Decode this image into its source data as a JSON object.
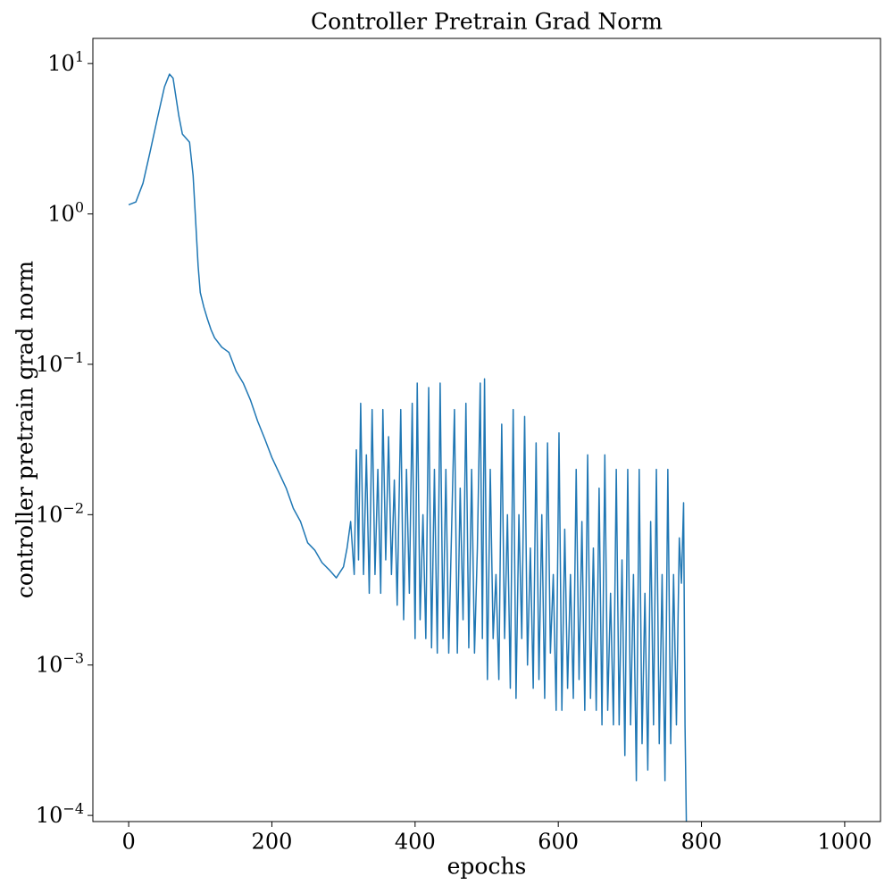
{
  "chart_data": {
    "type": "line",
    "title": "Controller Pretrain Grad Norm",
    "x_label": "epochs",
    "y_label": "controller pretrain grad norm",
    "color": "#1f77b4",
    "log_y": true,
    "grid": false,
    "xlim": [
      -50,
      1050
    ],
    "ylim": [
      9.1e-05,
      14.7
    ],
    "xticks": [
      0,
      200,
      400,
      600,
      800,
      1000
    ],
    "yticks": [
      {
        "value": 0.0001,
        "label": "10^−4"
      },
      {
        "value": 0.001,
        "label": "10^−3"
      },
      {
        "value": 0.01,
        "label": "10^−2"
      },
      {
        "value": 0.1,
        "label": "10^−1"
      },
      {
        "value": 1,
        "label": "10^0"
      },
      {
        "value": 10,
        "label": "10^1"
      }
    ],
    "x": [
      0,
      10,
      20,
      30,
      40,
      50,
      57,
      62,
      70,
      75,
      85,
      90,
      93,
      97,
      100,
      105,
      110,
      115,
      120,
      130,
      140,
      150,
      160,
      170,
      180,
      190,
      200,
      210,
      220,
      230,
      240,
      250,
      260,
      270,
      280,
      290,
      300,
      305,
      310,
      315,
      318,
      321,
      324,
      328,
      332,
      336,
      340,
      344,
      348,
      352,
      355,
      359,
      363,
      367,
      371,
      375,
      380,
      384,
      388,
      392,
      396,
      400,
      403,
      407,
      411,
      415,
      419,
      423,
      427,
      431,
      435,
      439,
      443,
      447,
      451,
      455,
      459,
      463,
      467,
      471,
      475,
      479,
      483,
      487,
      491,
      494,
      497,
      501,
      505,
      509,
      513,
      517,
      521,
      525,
      529,
      533,
      537,
      541,
      545,
      549,
      553,
      557,
      561,
      565,
      569,
      573,
      577,
      581,
      585,
      589,
      593,
      597,
      601,
      605,
      609,
      613,
      617,
      621,
      625,
      629,
      633,
      637,
      641,
      645,
      649,
      653,
      657,
      661,
      665,
      669,
      673,
      677,
      681,
      685,
      689,
      693,
      697,
      701,
      705,
      709,
      713,
      717,
      721,
      725,
      729,
      733,
      737,
      741,
      745,
      749,
      753,
      757,
      761,
      765,
      769,
      772,
      775,
      777,
      779
    ],
    "values": [
      1.15,
      1.2,
      1.6,
      2.6,
      4.3,
      7,
      8.5,
      8,
      4.5,
      3.4,
      3.0,
      1.8,
      1.0,
      0.45,
      0.3,
      0.24,
      0.2,
      0.17,
      0.15,
      0.13,
      0.12,
      0.09,
      0.075,
      0.058,
      0.042,
      0.032,
      0.024,
      0.019,
      0.015,
      0.011,
      0.009,
      0.0065,
      0.0058,
      0.0048,
      0.0043,
      0.0038,
      0.0045,
      0.006,
      0.009,
      0.004,
      0.027,
      0.005,
      0.055,
      0.004,
      0.025,
      0.003,
      0.05,
      0.004,
      0.02,
      0.003,
      0.05,
      0.005,
      0.033,
      0.004,
      0.017,
      0.0025,
      0.05,
      0.002,
      0.02,
      0.003,
      0.055,
      0.0015,
      0.075,
      0.002,
      0.01,
      0.0015,
      0.07,
      0.0013,
      0.02,
      0.0012,
      0.075,
      0.0015,
      0.02,
      0.0012,
      0.008,
      0.05,
      0.0012,
      0.015,
      0.002,
      0.055,
      0.0013,
      0.02,
      0.0012,
      0.006,
      0.075,
      0.0015,
      0.08,
      0.0008,
      0.02,
      0.0015,
      0.004,
      0.0008,
      0.04,
      0.0015,
      0.01,
      0.0007,
      0.05,
      0.0006,
      0.01,
      0.0015,
      0.045,
      0.001,
      0.006,
      0.0007,
      0.03,
      0.0008,
      0.01,
      0.0006,
      0.03,
      0.0012,
      0.004,
      0.0005,
      0.035,
      0.0005,
      0.008,
      0.0007,
      0.004,
      0.0006,
      0.02,
      0.0008,
      0.009,
      0.0005,
      0.025,
      0.0006,
      0.006,
      0.0005,
      0.015,
      0.0004,
      0.025,
      0.0005,
      0.003,
      0.0004,
      0.02,
      0.0004,
      0.005,
      0.00025,
      0.02,
      0.0004,
      0.004,
      0.00017,
      0.02,
      0.0003,
      0.003,
      0.0002,
      0.009,
      0.0004,
      0.02,
      0.0003,
      0.004,
      0.00017,
      0.02,
      0.0003,
      0.004,
      0.0004,
      0.007,
      0.0035,
      0.012,
      0.0004,
      8e-05
    ]
  }
}
